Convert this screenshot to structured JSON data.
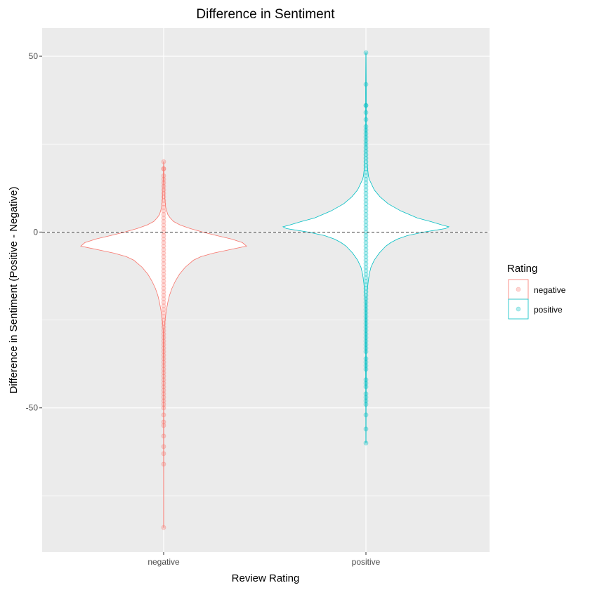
{
  "chart_data": {
    "type": "violin",
    "title": "Difference in Sentiment",
    "xlabel": "Review Rating",
    "ylabel": "Difference in Sentiment (Positive - Negative)",
    "categories": [
      "negative",
      "positive"
    ],
    "ylim": [
      -91,
      58
    ],
    "yticks": [
      -50,
      0,
      50
    ],
    "ytick_labels": [
      "-50",
      "0",
      "50"
    ],
    "reference_line": {
      "y": 0,
      "style": "dashed"
    },
    "grid": true,
    "legend": {
      "title": "Rating",
      "position": "right",
      "entries": [
        {
          "label": "negative",
          "color": "#F8766D"
        },
        {
          "label": "positive",
          "color": "#00BFC4"
        }
      ]
    },
    "series": [
      {
        "name": "negative",
        "color": "#F8766D",
        "violin_profile": [
          [
            20,
            0.001
          ],
          [
            15,
            0.005
          ],
          [
            10,
            0.012
          ],
          [
            7,
            0.025
          ],
          [
            5,
            0.05
          ],
          [
            4,
            0.08
          ],
          [
            3,
            0.12
          ],
          [
            2,
            0.2
          ],
          [
            1,
            0.32
          ],
          [
            0,
            0.47
          ],
          [
            -1,
            0.64
          ],
          [
            -2,
            0.82
          ],
          [
            -3,
            0.95
          ],
          [
            -4,
            1.0
          ],
          [
            -5,
            0.8
          ],
          [
            -6,
            0.6
          ],
          [
            -7,
            0.45
          ],
          [
            -8,
            0.36
          ],
          [
            -10,
            0.26
          ],
          [
            -12,
            0.19
          ],
          [
            -14,
            0.14
          ],
          [
            -16,
            0.1
          ],
          [
            -18,
            0.07
          ],
          [
            -20,
            0.05
          ],
          [
            -22,
            0.035
          ],
          [
            -24,
            0.022
          ],
          [
            -26,
            0.012
          ],
          [
            -28,
            0.005
          ],
          [
            -32,
            0.003
          ],
          [
            -40,
            0.002
          ],
          [
            -55,
            0.0015
          ],
          [
            -70,
            0.001
          ],
          [
            -84,
            0.0005
          ]
        ],
        "points": [
          20,
          18,
          18,
          16,
          15,
          14,
          13,
          12,
          11,
          10,
          9,
          8,
          7,
          6,
          5,
          4,
          3,
          2,
          1,
          0,
          -1,
          -2,
          -3,
          -4,
          -5,
          -6,
          -7,
          -8,
          -9,
          -10,
          -11,
          -12,
          -13,
          -14,
          -15,
          -16,
          -17,
          -18,
          -19,
          -20,
          -21,
          -22,
          -23,
          -24,
          -25,
          -26,
          -27,
          -28,
          -29,
          -30,
          -31,
          -32,
          -33,
          -34,
          -35,
          -36,
          -37,
          -38,
          -39,
          -40,
          -41,
          -42,
          -43,
          -44,
          -45,
          -46,
          -47,
          -48,
          -49,
          -50,
          -52,
          -54,
          -55,
          -58,
          -61,
          -63,
          -66,
          -84
        ]
      },
      {
        "name": "positive",
        "color": "#00BFC4",
        "violin_profile": [
          [
            51,
            0.001
          ],
          [
            40,
            0.003
          ],
          [
            30,
            0.005
          ],
          [
            25,
            0.008
          ],
          [
            20,
            0.012
          ],
          [
            18,
            0.02
          ],
          [
            16,
            0.03
          ],
          [
            15,
            0.04
          ],
          [
            14,
            0.06
          ],
          [
            12,
            0.1
          ],
          [
            10,
            0.17
          ],
          [
            8,
            0.27
          ],
          [
            6,
            0.42
          ],
          [
            4,
            0.62
          ],
          [
            3,
            0.78
          ],
          [
            2,
            0.92
          ],
          [
            1.5,
            1.0
          ],
          [
            1,
            0.96
          ],
          [
            0,
            0.7
          ],
          [
            -1,
            0.5
          ],
          [
            -2,
            0.38
          ],
          [
            -3,
            0.3
          ],
          [
            -4,
            0.24
          ],
          [
            -6,
            0.16
          ],
          [
            -8,
            0.1
          ],
          [
            -10,
            0.06
          ],
          [
            -12,
            0.04
          ],
          [
            -14,
            0.028
          ],
          [
            -16,
            0.018
          ],
          [
            -18,
            0.01
          ],
          [
            -20,
            0.006
          ],
          [
            -30,
            0.004
          ],
          [
            -40,
            0.003
          ],
          [
            -50,
            0.002
          ],
          [
            -60,
            0.001
          ]
        ],
        "points": [
          51,
          42,
          36,
          36,
          34,
          32,
          30,
          29,
          28,
          27,
          26,
          25,
          24,
          23,
          22,
          21,
          20,
          19,
          18,
          17,
          16,
          15,
          14,
          13,
          12,
          11,
          10,
          9,
          8,
          7,
          6,
          5,
          4,
          3,
          2,
          1,
          0,
          -1,
          -2,
          -3,
          -4,
          -5,
          -6,
          -7,
          -8,
          -9,
          -10,
          -11,
          -12,
          -13,
          -14,
          -15,
          -16,
          -17,
          -18,
          -19,
          -20,
          -21,
          -22,
          -23,
          -24,
          -25,
          -26,
          -27,
          -28,
          -29,
          -30,
          -31,
          -32,
          -33,
          -34,
          -36,
          -37,
          -38,
          -39,
          -42,
          -43,
          -44,
          -46,
          -47,
          -48,
          -49,
          -52,
          -56,
          -60
        ]
      }
    ]
  }
}
